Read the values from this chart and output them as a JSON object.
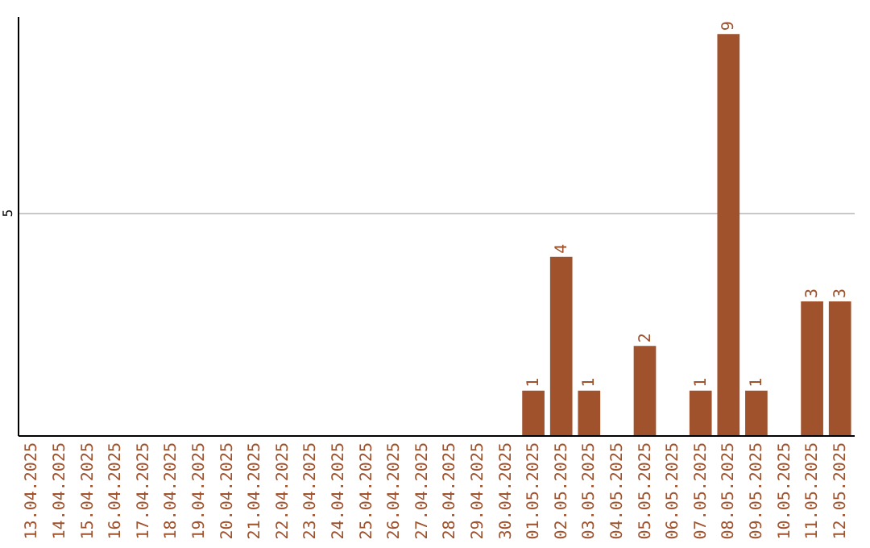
{
  "chart_data": {
    "type": "bar",
    "categories": [
      "13.04.2025",
      "14.04.2025",
      "15.04.2025",
      "16.04.2025",
      "17.04.2025",
      "18.04.2025",
      "19.04.2025",
      "20.04.2025",
      "21.04.2025",
      "22.04.2025",
      "23.04.2025",
      "24.04.2025",
      "25.04.2025",
      "26.04.2025",
      "27.04.2025",
      "28.04.2025",
      "29.04.2025",
      "30.04.2025",
      "01.05.2025",
      "02.05.2025",
      "03.05.2025",
      "04.05.2025",
      "05.05.2025",
      "06.05.2025",
      "07.05.2025",
      "08.05.2025",
      "09.05.2025",
      "10.05.2025",
      "11.05.2025",
      "12.05.2025"
    ],
    "values": [
      null,
      null,
      null,
      null,
      null,
      null,
      null,
      null,
      null,
      null,
      null,
      null,
      null,
      null,
      null,
      null,
      null,
      null,
      1,
      4,
      1,
      null,
      2,
      null,
      1,
      9,
      1,
      null,
      3,
      3
    ],
    "color": "#a0522d",
    "ylim": [
      0,
      9.4
    ],
    "yticks": [
      5
    ],
    "grid": "y",
    "data_labels": true
  }
}
